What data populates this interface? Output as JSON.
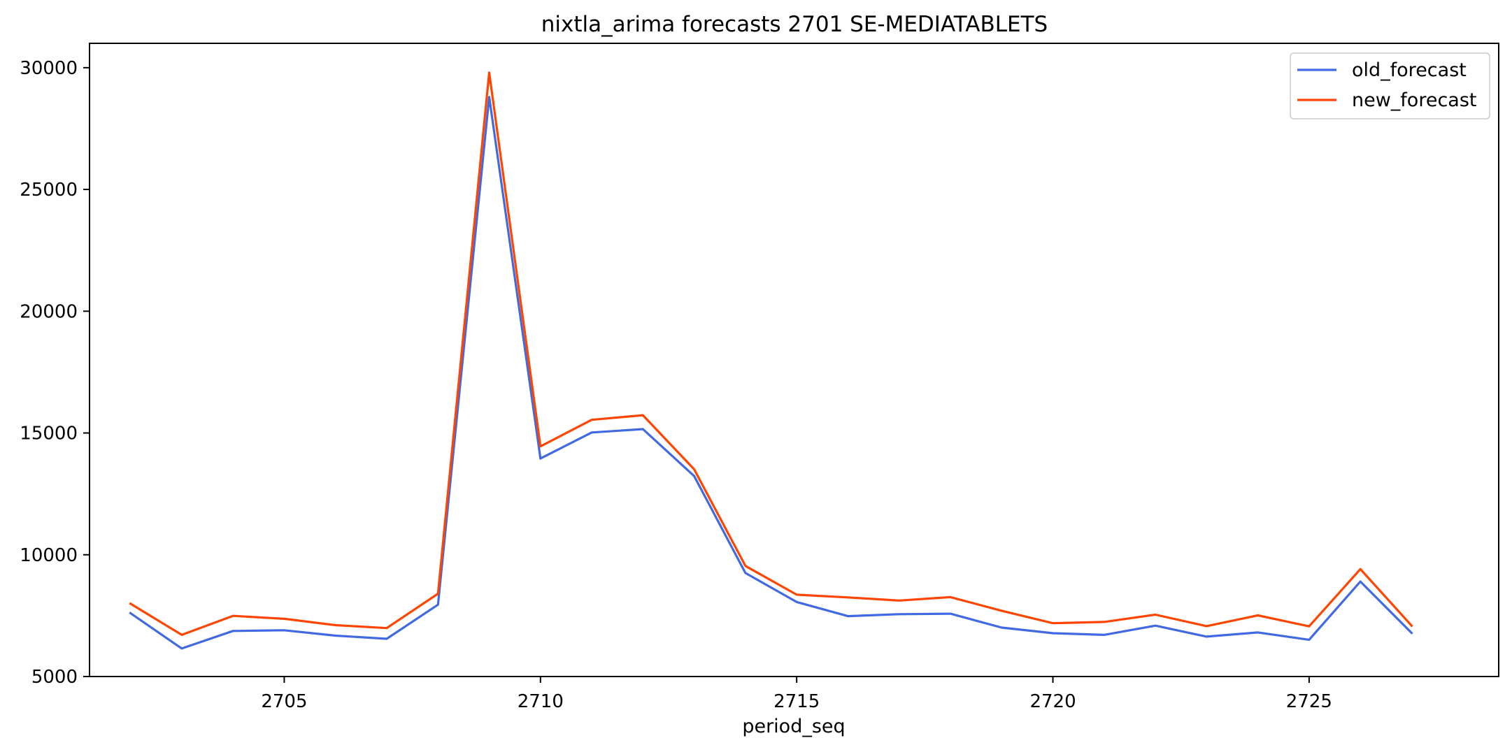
{
  "chart_data": {
    "type": "line",
    "title": "nixtla_arima forecasts 2701 SE-MEDIATABLETS",
    "xlabel": "period_seq",
    "ylabel": "",
    "xlim": [
      2701.2,
      2728.7
    ],
    "ylim": [
      5000,
      31000
    ],
    "x_ticks": [
      2705,
      2710,
      2715,
      2720,
      2725
    ],
    "y_ticks": [
      5000,
      10000,
      15000,
      20000,
      25000,
      30000
    ],
    "grid": false,
    "legend_position": "top-right",
    "x": [
      2702,
      2703,
      2704,
      2705,
      2706,
      2707,
      2708,
      2709,
      2710,
      2711,
      2712,
      2713,
      2714,
      2715,
      2716,
      2717,
      2718,
      2719,
      2720,
      2721,
      2722,
      2723,
      2724,
      2725,
      2726,
      2727
    ],
    "series": [
      {
        "name": "old_forecast",
        "color": "#4169E1",
        "values": [
          7600,
          6150,
          6870,
          6900,
          6680,
          6550,
          7950,
          28800,
          13950,
          15020,
          15160,
          13230,
          9250,
          8060,
          7480,
          7560,
          7580,
          7010,
          6780,
          6710,
          7090,
          6640,
          6810,
          6510,
          8900,
          6790
        ]
      },
      {
        "name": "new_forecast",
        "color": "#FF4500",
        "values": [
          7990,
          6710,
          7490,
          7370,
          7110,
          6990,
          8400,
          29800,
          14450,
          15540,
          15730,
          13510,
          9540,
          8360,
          8250,
          8120,
          8260,
          7700,
          7190,
          7240,
          7540,
          7070,
          7510,
          7060,
          9410,
          7090
        ]
      }
    ]
  }
}
